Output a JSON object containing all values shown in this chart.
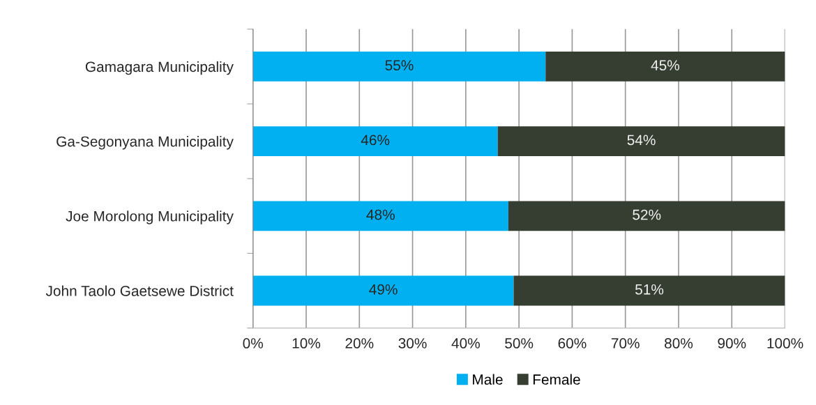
{
  "chart_data": {
    "type": "bar",
    "orientation": "horizontal",
    "stacked": true,
    "categories": [
      "Gamagara Municipality",
      "Ga-Segonyana Municipality",
      "Joe Morolong Municipality",
      "John Taolo Gaetsewe District"
    ],
    "series": [
      {
        "name": "Male",
        "color": "#00b0f0",
        "values": [
          55,
          46,
          48,
          49
        ],
        "value_labels": [
          "55%",
          "46%",
          "48%",
          "49%"
        ]
      },
      {
        "name": "Female",
        "color": "#363d31",
        "values": [
          45,
          54,
          52,
          51
        ],
        "value_labels": [
          "45%",
          "54%",
          "52%",
          "51%"
        ]
      }
    ],
    "xlim": [
      0,
      100
    ],
    "xticks": [
      {
        "value": 0,
        "label": "0%"
      },
      {
        "value": 10,
        "label": "10%"
      },
      {
        "value": 20,
        "label": "20%"
      },
      {
        "value": 30,
        "label": "30%"
      },
      {
        "value": 40,
        "label": "40%"
      },
      {
        "value": 50,
        "label": "50%"
      },
      {
        "value": 60,
        "label": "60%"
      },
      {
        "value": 70,
        "label": "70%"
      },
      {
        "value": 80,
        "label": "80%"
      },
      {
        "value": 90,
        "label": "90%"
      },
      {
        "value": 100,
        "label": "100%"
      }
    ],
    "grid": "x",
    "legend": "bottom"
  }
}
